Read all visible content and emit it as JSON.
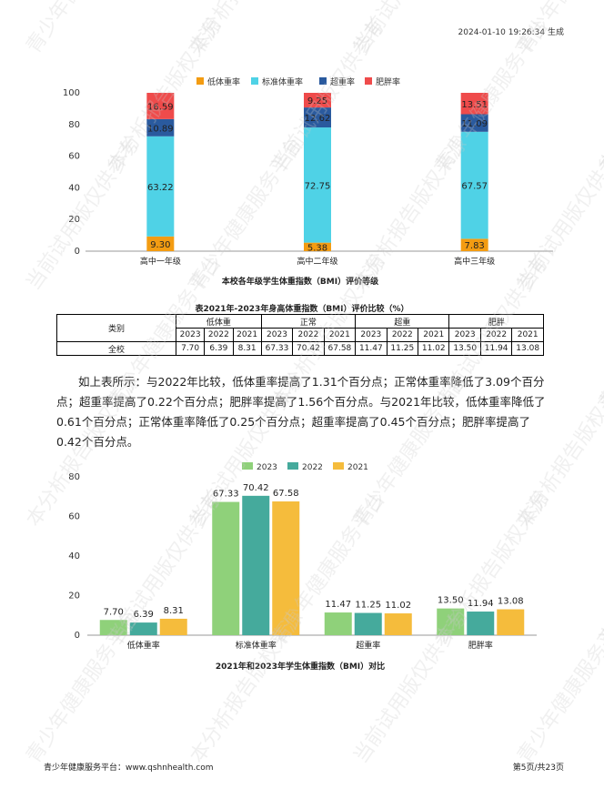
{
  "page": {
    "generated": "2024-01-10 19:26:34 生成",
    "footer_left": "青少年健康服务平台：www.qshnhealth.com",
    "footer_right": "第5页/共23页",
    "watermark_texts": [
      "青少年健康服务平台",
      "本分析报告版权来源",
      "当前试用版仅供参考"
    ]
  },
  "colors": {
    "low": "#f39c12",
    "normal": "#4fd2e6",
    "over": "#2a5a9e",
    "obese": "#ef4b4b",
    "y2023": "#8fd17a",
    "y2022": "#45aa9c",
    "y2021": "#f5bc3c"
  },
  "table": {
    "title": "表2021年-2023年身高体重指数（BMI）评价比较（%）",
    "category_header": "类别",
    "group_headers": [
      "低体重",
      "正常",
      "超重",
      "肥胖"
    ],
    "years": [
      "2023",
      "2022",
      "2021"
    ],
    "rows": [
      {
        "label": "全校",
        "values": [
          "7.70",
          "6.39",
          "8.31",
          "67.33",
          "70.42",
          "67.58",
          "11.47",
          "11.25",
          "11.02",
          "13.50",
          "11.94",
          "13.08"
        ]
      }
    ]
  },
  "paragraph": "如上表所示：与2022年比较，低体重率提高了1.31个百分点；正常体重率降低了3.09个百分点；超重率提高了0.22个百分点；肥胖率提高了1.56个百分点。与2021年比较，低体重率降低了0.61个百分点；正常体重率降低了0.25个百分点；超重率提高了0.45个百分点；肥胖率提高了0.42个百分点。",
  "chart_data": [
    {
      "type": "bar",
      "stacked": true,
      "title": "本校各年级学生体重指数（BMI）评价等级",
      "categories": [
        "高中一年级",
        "高中二年级",
        "高中三年级"
      ],
      "series": [
        {
          "name": "低体重率",
          "values": [
            9.3,
            5.38,
            7.83
          ]
        },
        {
          "name": "标准体重率",
          "values": [
            63.22,
            72.75,
            67.57
          ]
        },
        {
          "name": "超重率",
          "values": [
            10.89,
            12.62,
            11.09
          ]
        },
        {
          "name": "肥胖率",
          "values": [
            16.59,
            9.25,
            13.51
          ]
        }
      ],
      "value_labels": [
        [
          "9.30",
          "5.38",
          "7.83"
        ],
        [
          "63.22",
          "72.75",
          "67.57"
        ],
        [
          "10.89",
          "12.62",
          "11.09"
        ],
        [
          "16.59",
          "9.25",
          "13.51"
        ]
      ],
      "yticks": [
        "0",
        "20",
        "40",
        "60",
        "80",
        "100"
      ],
      "ylim": [
        0,
        100
      ],
      "legend": "top-center",
      "grid": false
    },
    {
      "type": "bar",
      "stacked": false,
      "title": "2021年和2023年学生体重指数（BMI）对比",
      "categories": [
        "低体重率",
        "标准体重率",
        "超重率",
        "肥胖率"
      ],
      "series": [
        {
          "name": "2023",
          "values": [
            7.7,
            67.33,
            11.47,
            13.5
          ]
        },
        {
          "name": "2022",
          "values": [
            6.39,
            70.42,
            11.25,
            11.94
          ]
        },
        {
          "name": "2021",
          "values": [
            8.31,
            67.58,
            11.02,
            13.08
          ]
        }
      ],
      "value_labels": [
        [
          "7.70",
          "67.33",
          "11.47",
          "13.50"
        ],
        [
          "6.39",
          "70.42",
          "11.25",
          "11.94"
        ],
        [
          "8.31",
          "67.58",
          "11.02",
          "13.08"
        ]
      ],
      "yticks": [
        "0",
        "20",
        "40",
        "60",
        "80"
      ],
      "ylim": [
        0,
        80
      ],
      "legend": "top-center",
      "grid": false
    }
  ]
}
